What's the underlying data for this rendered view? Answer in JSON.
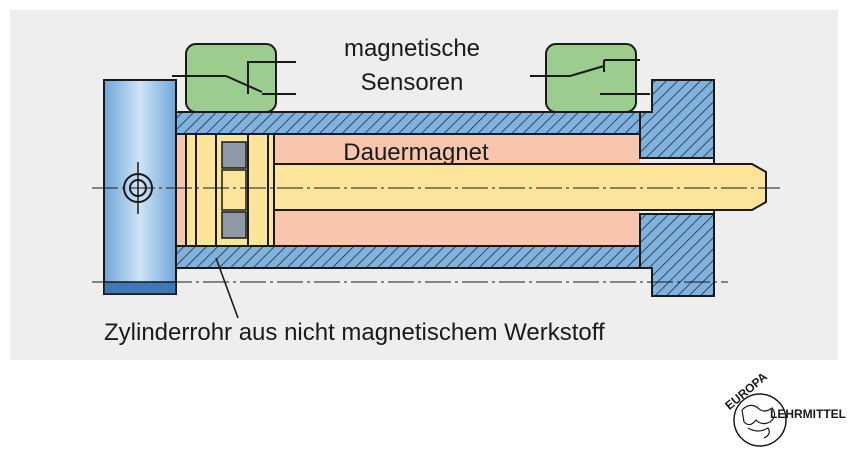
{
  "labels": {
    "sensors_line1": "magnetische",
    "sensors_line2": "Sensoren",
    "magnet": "Dauermagnet",
    "tube": "Zylinderrohr aus nicht magnetischem Werkstoff"
  },
  "logo": {
    "text_top": "EUROPA",
    "text_side": "LEHRMITTEL"
  },
  "colors": {
    "panel": "#eeeeee",
    "cap_blue": "#86b9e2",
    "tube_blue": "#7fb2de",
    "rod_yellow": "#fce59a",
    "magnet_pink": "#f7c6ad",
    "sensor_green": "#9ccc8e",
    "stroke": "#1a1a1a"
  }
}
